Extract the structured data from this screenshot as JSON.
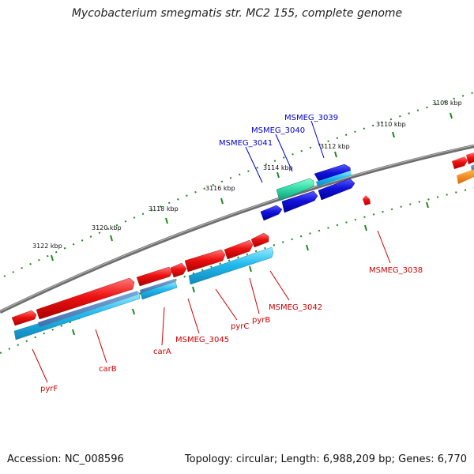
{
  "title": "Mycobacterium smegmatis str. MC2 155, complete genome",
  "accession": "Accession: NC_008596",
  "summary": "Topology: circular; Length: 6,988,209 bp; Genes: 6,770",
  "colors": {
    "backbone": "#8a8a8a",
    "tick": "#1a8a1a",
    "label_forward": "#0000cc",
    "label_reverse": "#cc0000",
    "gene_red": "#ee1111",
    "gene_blue": "#1111dd",
    "gene_cyan": "#22bbee",
    "gene_teal": "#33ddaa",
    "gene_orange": "#ff8800"
  },
  "ticks": [
    {
      "label": "3108 kbp"
    },
    {
      "label": "3110 kbp"
    },
    {
      "label": "3112 kbp"
    },
    {
      "label": "3114 kbp"
    },
    {
      "label": "3116 kbp"
    },
    {
      "label": "3118 kbp"
    },
    {
      "label": "3120 kbp"
    },
    {
      "label": "3122 kbp"
    }
  ],
  "genes_forward": [
    {
      "name": "MSMEG_3039"
    },
    {
      "name": "MSMEG_3040"
    },
    {
      "name": "MSMEG_3041"
    }
  ],
  "genes_reverse": [
    {
      "name": "MSMEG_3038"
    },
    {
      "name": "MSMEG_3042"
    },
    {
      "name": "pyrB"
    },
    {
      "name": "pyrC"
    },
    {
      "name": "MSMEG_3045"
    },
    {
      "name": "carA"
    },
    {
      "name": "carB"
    },
    {
      "name": "pyrF"
    }
  ]
}
